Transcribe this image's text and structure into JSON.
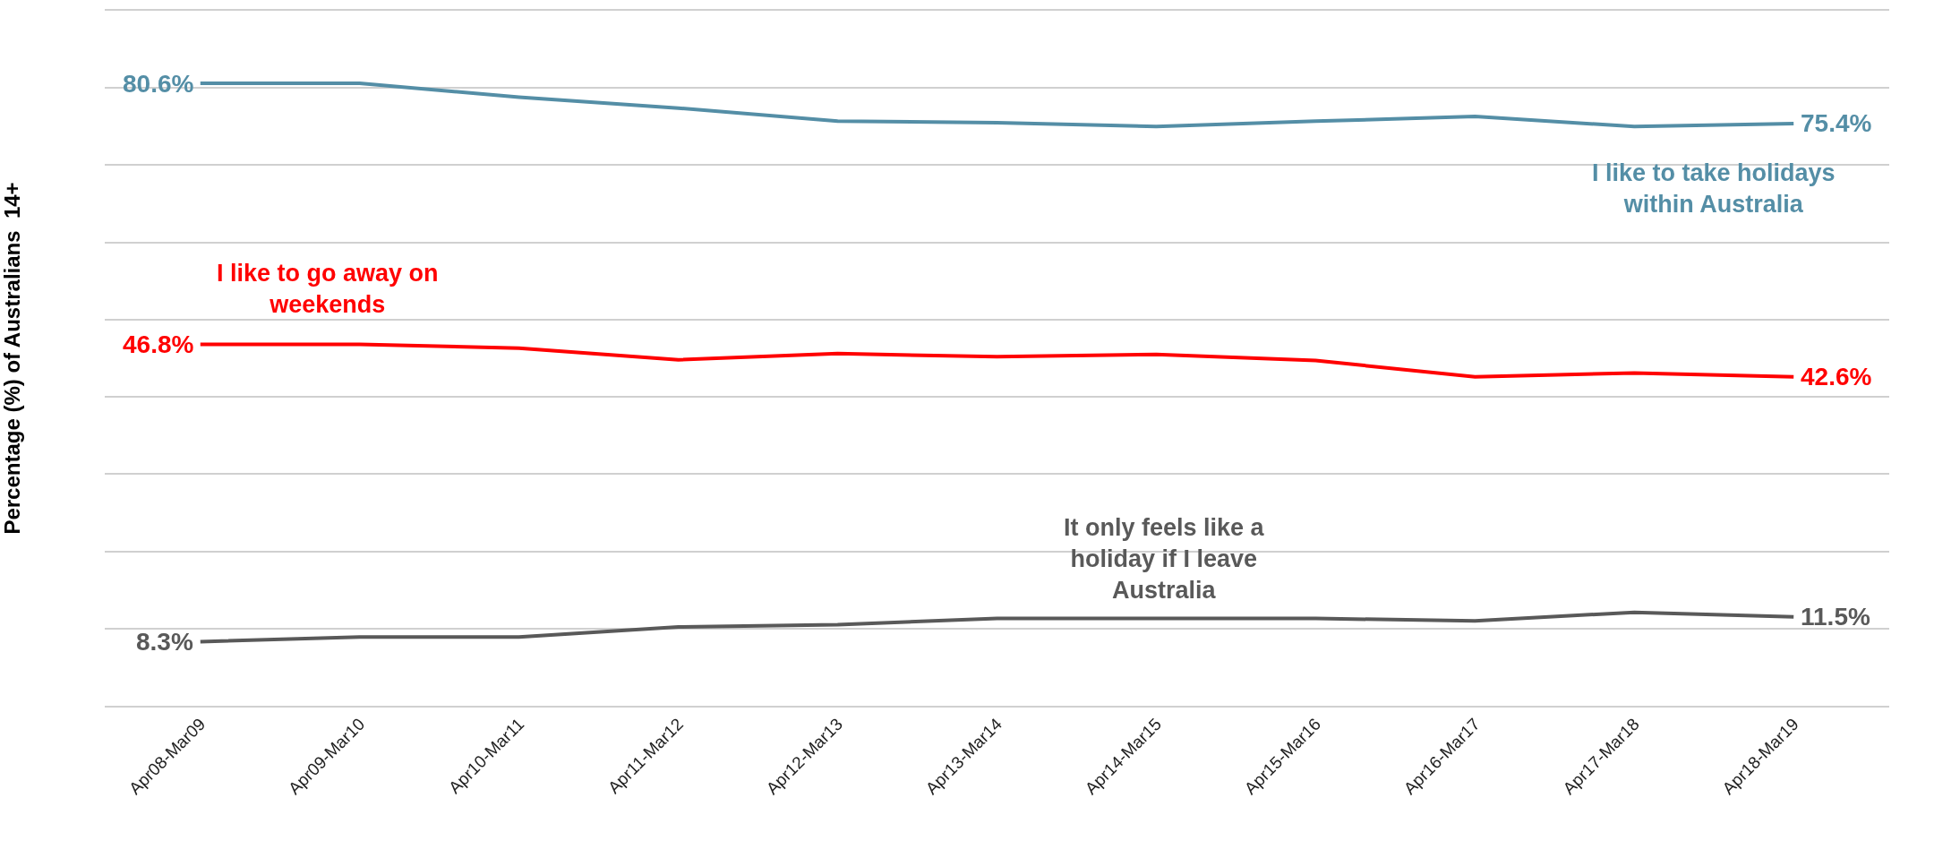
{
  "chart_data": {
    "type": "line",
    "ylabel": "Percentage (%) of Australians  14+",
    "categories": [
      "Apr08-Mar09",
      "Apr09-Mar10",
      "Apr10-Mar11",
      "Apr11-Mar12",
      "Apr12-Mar13",
      "Apr13-Mar14",
      "Apr14-Mar15",
      "Apr15-Mar16",
      "Apr16-Mar17",
      "Apr17-Mar18",
      "Apr18-Mar19"
    ],
    "series": [
      {
        "name": "I like to take holidays within Australia",
        "color": "#548ea6",
        "values": [
          80.6,
          80.6,
          78.8,
          77.4,
          75.7,
          75.5,
          75.0,
          75.7,
          76.3,
          75.0,
          75.4
        ],
        "value_labels": [
          "80.6%",
          null,
          null,
          null,
          null,
          null,
          null,
          null,
          null,
          null,
          "75.4%"
        ]
      },
      {
        "name": "I like to go away on weekends",
        "color": "#ff0000",
        "values": [
          46.8,
          46.8,
          46.3,
          44.8,
          45.6,
          45.2,
          45.5,
          44.7,
          42.6,
          43.1,
          42.6
        ],
        "value_labels": [
          "46.8%",
          null,
          null,
          null,
          null,
          null,
          null,
          null,
          null,
          null,
          "42.6%"
        ]
      },
      {
        "name": "It only feels like a holiday if I leave Australia",
        "color": "#595959",
        "values": [
          8.3,
          8.9,
          8.9,
          10.2,
          10.5,
          11.3,
          11.3,
          11.3,
          11.0,
          12.1,
          11.5
        ],
        "value_labels": [
          "8.3%",
          null,
          null,
          null,
          null,
          null,
          null,
          null,
          null,
          null,
          "11.5%"
        ]
      }
    ],
    "ylim": [
      0,
      90
    ],
    "yticks": [
      {
        "value": 0,
        "label": null
      },
      {
        "value": 10,
        "label": null
      },
      {
        "value": 20,
        "label": null
      },
      {
        "value": 30,
        "label": null
      },
      {
        "value": 40,
        "label": null
      },
      {
        "value": 50,
        "label": null
      },
      {
        "value": 60,
        "label": null
      },
      {
        "value": 70,
        "label": null
      },
      {
        "value": 80,
        "label": null
      },
      {
        "value": 90,
        "label": null
      }
    ],
    "grid": "y",
    "legend": false,
    "marker": "none",
    "line_style": "solid",
    "tick_labels": "x"
  }
}
